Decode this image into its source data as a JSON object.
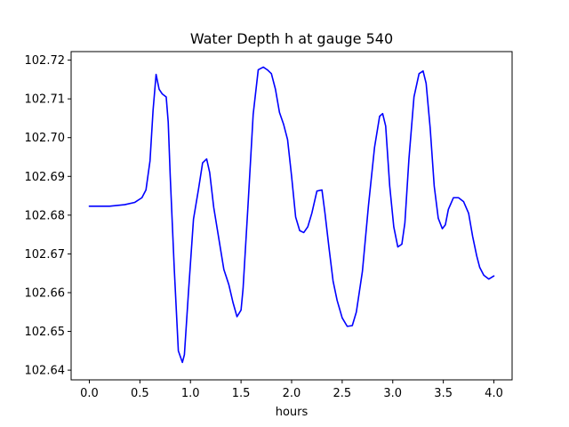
{
  "chart_data": {
    "type": "line",
    "title": "Water Depth h at gauge 540",
    "xlabel": "hours",
    "ylabel": "",
    "xlim": [
      -0.18,
      4.18
    ],
    "ylim": [
      102.6375,
      102.7222
    ],
    "x_ticks": [
      0.0,
      0.5,
      1.0,
      1.5,
      2.0,
      2.5,
      3.0,
      3.5,
      4.0
    ],
    "x_tick_labels": [
      "0.0",
      "0.5",
      "1.0",
      "1.5",
      "2.0",
      "2.5",
      "3.0",
      "3.5",
      "4.0"
    ],
    "y_ticks": [
      102.64,
      102.65,
      102.66,
      102.67,
      102.68,
      102.69,
      102.7,
      102.71,
      102.72
    ],
    "y_tick_labels": [
      "102.64",
      "102.65",
      "102.66",
      "102.67",
      "102.68",
      "102.69",
      "102.70",
      "102.71",
      "102.72"
    ],
    "grid": false,
    "legend": "none",
    "series": [
      {
        "color": "#0000ff",
        "x": [
          0.0,
          0.2,
          0.35,
          0.45,
          0.52,
          0.56,
          0.6,
          0.63,
          0.66,
          0.69,
          0.72,
          0.76,
          0.78,
          0.8,
          0.84,
          0.88,
          0.92,
          0.94,
          0.98,
          1.03,
          1.08,
          1.12,
          1.16,
          1.19,
          1.23,
          1.28,
          1.33,
          1.38,
          1.42,
          1.46,
          1.5,
          1.52,
          1.57,
          1.62,
          1.67,
          1.72,
          1.76,
          1.8,
          1.84,
          1.88,
          1.92,
          1.96,
          2.0,
          2.04,
          2.08,
          2.12,
          2.16,
          2.2,
          2.25,
          2.3,
          2.33,
          2.37,
          2.41,
          2.45,
          2.5,
          2.55,
          2.6,
          2.64,
          2.7,
          2.76,
          2.82,
          2.87,
          2.9,
          2.93,
          2.97,
          3.01,
          3.05,
          3.09,
          3.12,
          3.16,
          3.21,
          3.26,
          3.3,
          3.33,
          3.37,
          3.41,
          3.45,
          3.49,
          3.52,
          3.55,
          3.6,
          3.65,
          3.7,
          3.75,
          3.79,
          3.83,
          3.86,
          3.9,
          3.95,
          4.0
        ],
        "values": [
          102.6823,
          102.6823,
          102.6827,
          102.6833,
          102.6845,
          102.6865,
          102.694,
          102.707,
          102.7163,
          102.7125,
          102.7113,
          102.7105,
          102.704,
          102.69,
          102.666,
          102.645,
          102.642,
          102.644,
          102.66,
          102.679,
          102.6868,
          102.6935,
          102.6945,
          102.691,
          102.682,
          102.674,
          102.666,
          102.662,
          102.6575,
          102.6538,
          102.6555,
          102.661,
          102.683,
          102.706,
          102.7175,
          102.7182,
          102.7175,
          102.7165,
          102.7125,
          102.7065,
          102.7035,
          102.6995,
          102.69,
          102.6795,
          102.676,
          102.6755,
          102.677,
          102.6805,
          102.6862,
          102.6865,
          102.6805,
          102.6715,
          102.663,
          102.658,
          102.6535,
          102.6513,
          102.6515,
          102.655,
          102.6655,
          102.6825,
          102.6975,
          102.7055,
          102.7062,
          102.703,
          102.6875,
          102.677,
          102.6718,
          102.6725,
          102.678,
          102.6945,
          102.7105,
          102.7165,
          102.7172,
          102.714,
          102.7025,
          102.6875,
          102.6792,
          102.6765,
          102.6775,
          102.6815,
          102.6845,
          102.6845,
          102.6835,
          102.6805,
          102.6745,
          102.6695,
          102.6665,
          102.6645,
          102.6635,
          102.6643
        ]
      }
    ]
  }
}
